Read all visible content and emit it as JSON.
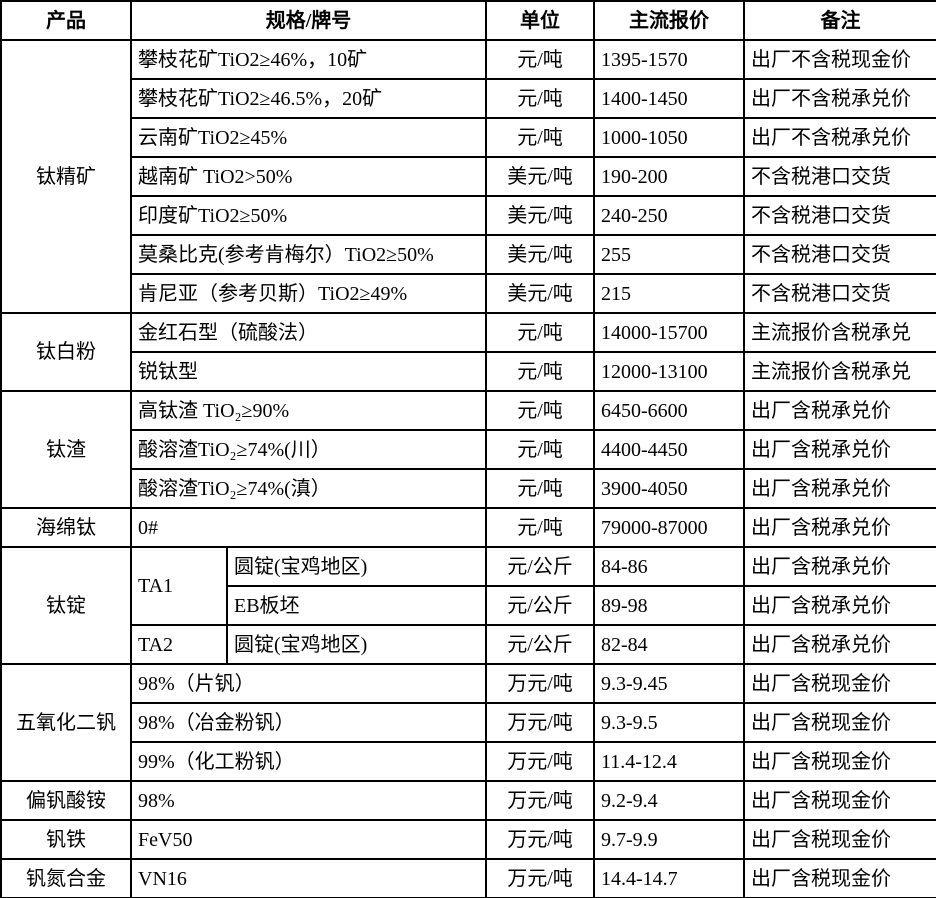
{
  "colors": {
    "border": "#000000",
    "text": "#000000",
    "background": "#ffffff"
  },
  "table": {
    "header": {
      "product": "产品",
      "spec": "规格/牌号",
      "unit": "单位",
      "price": "主流报价",
      "note": "备注"
    },
    "groups": [
      {
        "product": "钛精矿",
        "rows": [
          {
            "spec": "攀枝花矿TiO2≥46%，10矿",
            "unit": "元/吨",
            "price": "1395-1570",
            "note": "出厂不含税现金价"
          },
          {
            "spec": "攀枝花矿TiO2≥46.5%，20矿",
            "unit": "元/吨",
            "price": "1400-1450",
            "note": "出厂不含税承兑价"
          },
          {
            "spec": "云南矿TiO2≥45%",
            "unit": "元/吨",
            "price": "1000-1050",
            "note": "出厂不含税承兑价"
          },
          {
            "spec": "越南矿 TiO2>50%",
            "unit": "美元/吨",
            "price": "190-200",
            "note": "不含税港口交货"
          },
          {
            "spec": "印度矿TiO2≥50%",
            "unit": "美元/吨",
            "price": "240-250",
            "note": "不含税港口交货"
          },
          {
            "spec": "莫桑比克(参考肯梅尔）TiO2≥50%",
            "unit": "美元/吨",
            "price": "255",
            "note": "不含税港口交货"
          },
          {
            "spec": "肯尼亚（参考贝斯）TiO2≥49%",
            "unit": "美元/吨",
            "price": "215",
            "note": "不含税港口交货"
          }
        ]
      },
      {
        "product": "钛白粉",
        "rows": [
          {
            "spec": "金红石型（硫酸法）",
            "unit": "元/吨",
            "price": "14000-15700",
            "note": "主流报价含税承兑"
          },
          {
            "spec": "锐钛型",
            "unit": "元/吨",
            "price": "12000-13100",
            "note": "主流报价含税承兑"
          }
        ]
      },
      {
        "product": "钛渣",
        "rows": [
          {
            "spec": "高钛渣 TiO₂≥90%",
            "unit": "元/吨",
            "price": "6450-6600",
            "note": "出厂含税承兑价"
          },
          {
            "spec": "酸溶渣TiO₂≥74%(川）",
            "unit": "元/吨",
            "price": "4400-4450",
            "note": "出厂含税承兑价"
          },
          {
            "spec": "酸溶渣TiO₂≥74%(滇）",
            "unit": "元/吨",
            "price": "3900-4050",
            "note": "出厂含税承兑价"
          }
        ]
      },
      {
        "product": "海绵钛",
        "rows": [
          {
            "spec": "0#",
            "unit": "元/吨",
            "price": "79000-87000",
            "note": "出厂含税承兑价"
          }
        ]
      },
      {
        "product": "钛锭",
        "rows": [
          {
            "grade": "TA1",
            "grade_span": 2,
            "spec": "圆锭(宝鸡地区)",
            "unit": "元/公斤",
            "price": "84-86",
            "note": "出厂含税承兑价"
          },
          {
            "spec": "EB板坯",
            "unit": "元/公斤",
            "price": "89-98",
            "note": "出厂含税承兑价"
          },
          {
            "grade": "TA2",
            "grade_span": 1,
            "spec": "圆锭(宝鸡地区)",
            "unit": "元/公斤",
            "price": "82-84",
            "note": "出厂含税承兑价"
          }
        ]
      },
      {
        "product": "五氧化二钒",
        "rows": [
          {
            "spec": "98%（片钒）",
            "unit": "万元/吨",
            "price": "9.3-9.45",
            "note": "出厂含税现金价"
          },
          {
            "spec": "98%（冶金粉钒）",
            "unit": "万元/吨",
            "price": "9.3-9.5",
            "note": "出厂含税现金价"
          },
          {
            "spec": "99%（化工粉钒）",
            "unit": "万元/吨",
            "price": "11.4-12.4",
            "note": "出厂含税现金价"
          }
        ]
      },
      {
        "product": "偏钒酸铵",
        "rows": [
          {
            "spec": "98%",
            "unit": "万元/吨",
            "price": "9.2-9.4",
            "note": "出厂含税现金价"
          }
        ]
      },
      {
        "product": "钒铁",
        "rows": [
          {
            "spec": "FeV50",
            "unit": "万元/吨",
            "price": "9.7-9.9",
            "note": "出厂含税现金价"
          }
        ]
      },
      {
        "product": "钒氮合金",
        "rows": [
          {
            "spec": "VN16",
            "unit": "万元/吨",
            "price": "14.4-14.7",
            "note": "出厂含税现金价"
          }
        ]
      }
    ]
  }
}
